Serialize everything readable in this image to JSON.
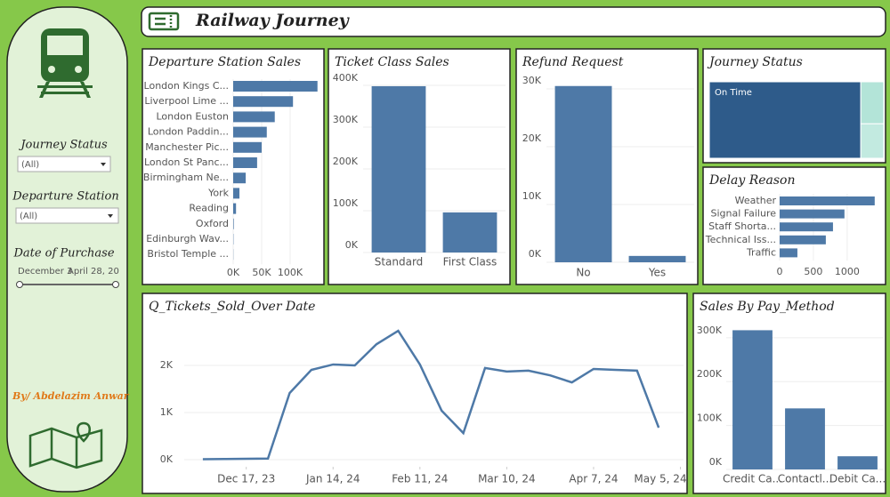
{
  "header": {
    "title": "Railway Journey"
  },
  "sidebar": {
    "filters": [
      {
        "label": "Journey Status",
        "value": "(All)"
      },
      {
        "label": "Departure Station",
        "value": "(All)"
      }
    ],
    "date_filter": {
      "label": "Date of Purchase",
      "start": "December 3",
      "end": "April 28, 20"
    },
    "author": "By/ Abdelazim Anwar"
  },
  "chart_data": [
    {
      "type": "hbar",
      "title": "Departure Station Sales",
      "categories": [
        "London Kings C...",
        "Liverpool Lime ...",
        "London Euston",
        "London Paddin...",
        "Manchester Pic...",
        "London St Panc...",
        "Birmingham Ne...",
        "York",
        "Reading",
        "Oxford",
        "Edinburgh Wav...",
        "Bristol Temple ..."
      ],
      "values": [
        148000,
        105000,
        73000,
        59000,
        50000,
        42000,
        22000,
        11000,
        5000,
        1000,
        500,
        300
      ],
      "color": "#4e79a7",
      "xlim": [
        0,
        150000
      ],
      "xticks": [
        {
          "value": 0,
          "label": "0K"
        },
        {
          "value": 50000,
          "label": "50K"
        },
        {
          "value": 100000,
          "label": "100K"
        }
      ],
      "grid": true
    },
    {
      "type": "bar",
      "title": "Ticket Class Sales",
      "categories": [
        "Standard",
        "First Class"
      ],
      "values": [
        398000,
        96000
      ],
      "color": "#4e79a7",
      "ylim": [
        0,
        400000
      ],
      "yticks": [
        {
          "value": 0,
          "label": "0K"
        },
        {
          "value": 100000,
          "label": "100K"
        },
        {
          "value": 200000,
          "label": "200K"
        },
        {
          "value": 300000,
          "label": "300K"
        },
        {
          "value": 400000,
          "label": "400K"
        }
      ],
      "grid": true
    },
    {
      "type": "bar",
      "title": "Refund Request",
      "categories": [
        "No",
        "Yes"
      ],
      "values": [
        30500,
        1100
      ],
      "color": "#4e79a7",
      "ylim": [
        0,
        31000
      ],
      "yticks": [
        {
          "value": 0,
          "label": "0K"
        },
        {
          "value": 10000,
          "label": "10K"
        },
        {
          "value": 20000,
          "label": "20K"
        },
        {
          "value": 30000,
          "label": "30K"
        }
      ],
      "grid": true
    },
    {
      "type": "treemap",
      "title": "Journey Status",
      "categories": [
        "On Time",
        null,
        null
      ],
      "values": [
        27481,
        2292,
        1880
      ],
      "colors": [
        "#2e5b8a",
        "#b3e4d8",
        "#c2eae0"
      ]
    },
    {
      "type": "hbar",
      "title": "Delay Reason",
      "categories": [
        "Weather",
        "Signal Failure",
        "Staff Shorta...",
        "Technical Iss...",
        "Traffic"
      ],
      "values": [
        1408,
        960,
        790,
        684,
        263
      ],
      "color": "#4e79a7",
      "xlim": [
        0,
        1450
      ],
      "xticks": [
        0,
        500,
        1000
      ],
      "grid": true
    },
    {
      "type": "line",
      "title": "Q_Tickets_Sold_Over Date",
      "x": [
        "2023-12-03",
        "2023-12-10",
        "2023-12-17",
        "2023-12-24",
        "2023-12-31",
        "2024-01-07",
        "2024-01-14",
        "2024-01-21",
        "2024-01-28",
        "2024-02-04",
        "2024-02-11",
        "2024-02-18",
        "2024-02-25",
        "2024-03-03",
        "2024-03-10",
        "2024-03-17",
        "2024-03-24",
        "2024-03-31",
        "2024-04-07",
        "2024-04-14",
        "2024-04-21",
        "2024-04-28"
      ],
      "values": [
        10,
        15,
        20,
        25,
        1415,
        1905,
        2020,
        2000,
        2450,
        2735,
        2020,
        1040,
        565,
        1945,
        1870,
        1890,
        1790,
        1640,
        1925,
        1905,
        1890,
        680
      ],
      "color": "#4e79a7",
      "xlim": [
        "2023-11-27",
        "2024-05-06"
      ],
      "xticks": [
        {
          "value": "2023-12-17",
          "label": "Dec 17, 23"
        },
        {
          "value": "2024-01-14",
          "label": "Jan 14, 24"
        },
        {
          "value": "2024-02-11",
          "label": "Feb 11, 24"
        },
        {
          "value": "2024-03-10",
          "label": "Mar 10, 24"
        },
        {
          "value": "2024-04-07",
          "label": "Apr 7, 24"
        },
        {
          "value": "2024-05-05",
          "label": "May 5, 24"
        }
      ],
      "ylim": [
        -150,
        3000
      ],
      "yticks": [
        {
          "value": 0,
          "label": "0K"
        },
        {
          "value": 1000,
          "label": "1K"
        },
        {
          "value": 2000,
          "label": "2K"
        }
      ],
      "grid": true
    },
    {
      "type": "bar",
      "title": "Sales By Pay_Method",
      "categories": [
        "Credit Ca...",
        "Contactl...",
        "Debit Ca..."
      ],
      "values": [
        317000,
        139000,
        30000
      ],
      "color": "#4e79a7",
      "ylim": [
        0,
        330000
      ],
      "yticks": [
        {
          "value": 0,
          "label": "0K"
        },
        {
          "value": 100000,
          "label": "100K"
        },
        {
          "value": 200000,
          "label": "200K"
        },
        {
          "value": 300000,
          "label": "300K"
        }
      ],
      "grid": true
    }
  ]
}
